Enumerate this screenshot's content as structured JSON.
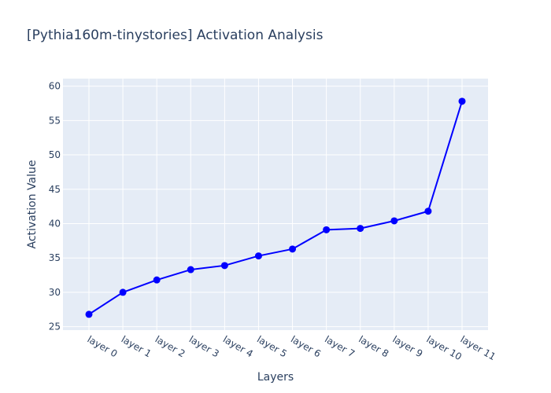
{
  "chart_data": {
    "type": "line",
    "title": "[Pythia160m-tinystories] Activation Analysis",
    "xlabel": "Layers",
    "ylabel": "Activation Value",
    "categories": [
      "layer 0",
      "layer 1",
      "layer 2",
      "layer 3",
      "layer 4",
      "layer 5",
      "layer 6",
      "layer 7",
      "layer 8",
      "layer 9",
      "layer 10",
      "layer 11"
    ],
    "series": [
      {
        "values": [
          26.8,
          30.0,
          31.8,
          33.3,
          33.9,
          35.3,
          36.3,
          39.1,
          39.3,
          40.4,
          41.8,
          57.8
        ]
      }
    ],
    "ylim": [
      24.5,
      61.1
    ],
    "yticks": [
      25,
      30,
      35,
      40,
      45,
      50,
      55,
      60
    ],
    "grid": true,
    "legend": "none",
    "colors": {
      "line": "#0000ff",
      "marker": "#0000ff",
      "plot_background": "#e5ecf6",
      "grid": "#ffffff",
      "text": "#2a3f5f"
    }
  }
}
